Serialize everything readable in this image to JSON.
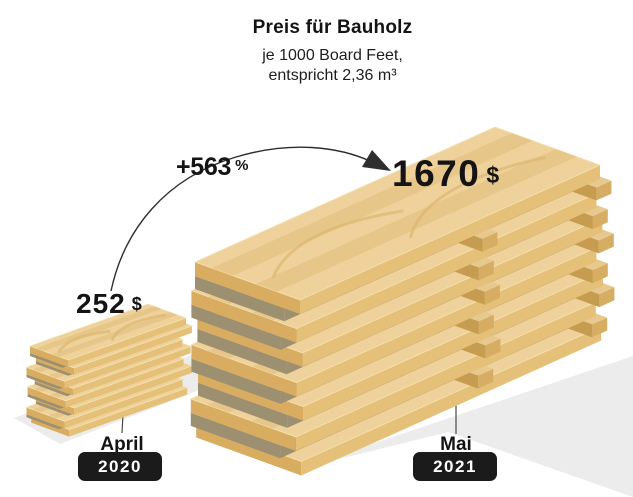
{
  "header": {
    "title": "Preis für Bauholz",
    "subtitle_line1": "je 1000 Board Feet,",
    "subtitle_line2": "entspricht 2,36 m³"
  },
  "change": {
    "value": "+563",
    "unit": "%"
  },
  "points": {
    "april": {
      "value": "252",
      "currency": "$",
      "month": "April",
      "year": "2020"
    },
    "mai": {
      "value": "1670",
      "currency": "$",
      "month": "Mai",
      "year": "2021"
    }
  },
  "chart_data": {
    "type": "bar",
    "title": "Preis für Bauholz",
    "subtitle": "je 1000 Board Feet, entspricht 2,36 m³",
    "categories": [
      "April 2020",
      "Mai 2021"
    ],
    "values": [
      252,
      1670
    ],
    "unit": "$",
    "annotation": "+563 %",
    "style": "pictorial isometric lumber stacks",
    "legend_position": "none",
    "grid": false
  },
  "illustration": {
    "small_stack_planks": 8,
    "large_stack_planks": 7,
    "colors": {
      "wood_top": "#efd29b",
      "wood_front": "#e5c078",
      "wood_end": "#d8ad62",
      "wood_grain": "#dcb56e",
      "wood_bevel": "#f5e3b3",
      "gap": "#9c9071",
      "spacer_top": "#e7c98f",
      "spacer_front": "#d6ad62",
      "spacer_end": "#c69c50",
      "shadow": "#ececec",
      "line": "#4a4a4a",
      "arrow": "#2e2e2e",
      "text": "#141414",
      "badge_bg": "#1b1b1b",
      "badge_text": "#ffffff"
    }
  }
}
